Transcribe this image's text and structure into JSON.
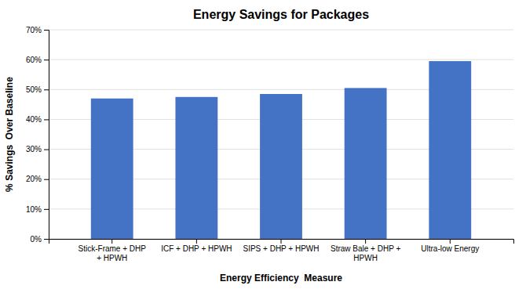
{
  "chart_data": {
    "type": "bar",
    "title": "Energy Savings for Packages",
    "xlabel": "Energy Efficiency  Measure",
    "ylabel": "% Savings  Over Baseline",
    "categories": [
      "Stick-Frame + DHP\n+ HPWH",
      "ICF + DHP + HPWH",
      "SIPS + DHP + HPWH",
      "Straw Bale + DHP +\nHPWH",
      "Ultra-low Energy"
    ],
    "values": [
      47.0,
      47.5,
      48.5,
      50.5,
      59.5
    ],
    "color": "#4472C4",
    "ylim": [
      0,
      70
    ],
    "yticks": [
      {
        "value": 0,
        "label": "0%"
      },
      {
        "value": 10,
        "label": "10%"
      },
      {
        "value": 20,
        "label": "20%"
      },
      {
        "value": 30,
        "label": "30%"
      },
      {
        "value": 40,
        "label": "40%"
      },
      {
        "value": 50,
        "label": "50%"
      },
      {
        "value": 60,
        "label": "60%"
      },
      {
        "value": 70,
        "label": "70%"
      }
    ],
    "grid": true
  }
}
